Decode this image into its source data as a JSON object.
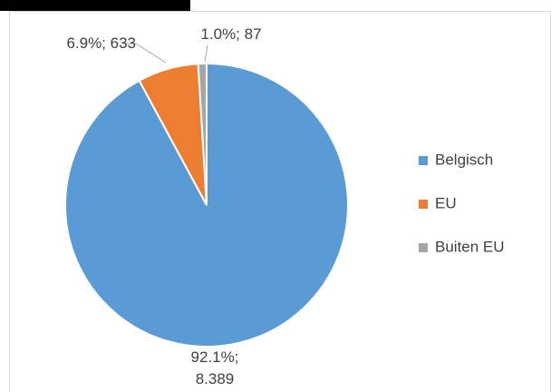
{
  "chart_data": {
    "type": "pie",
    "categories": [
      "Belgisch",
      "EU",
      "Buiten EU"
    ],
    "values": [
      8389,
      633,
      87
    ],
    "value_labels": [
      "92.1%; 8.389",
      "6.9%; 633",
      "1.0%; 87"
    ],
    "colors": [
      "#5b9bd5",
      "#ed7d31",
      "#a5a5a5"
    ],
    "legend": "right"
  }
}
